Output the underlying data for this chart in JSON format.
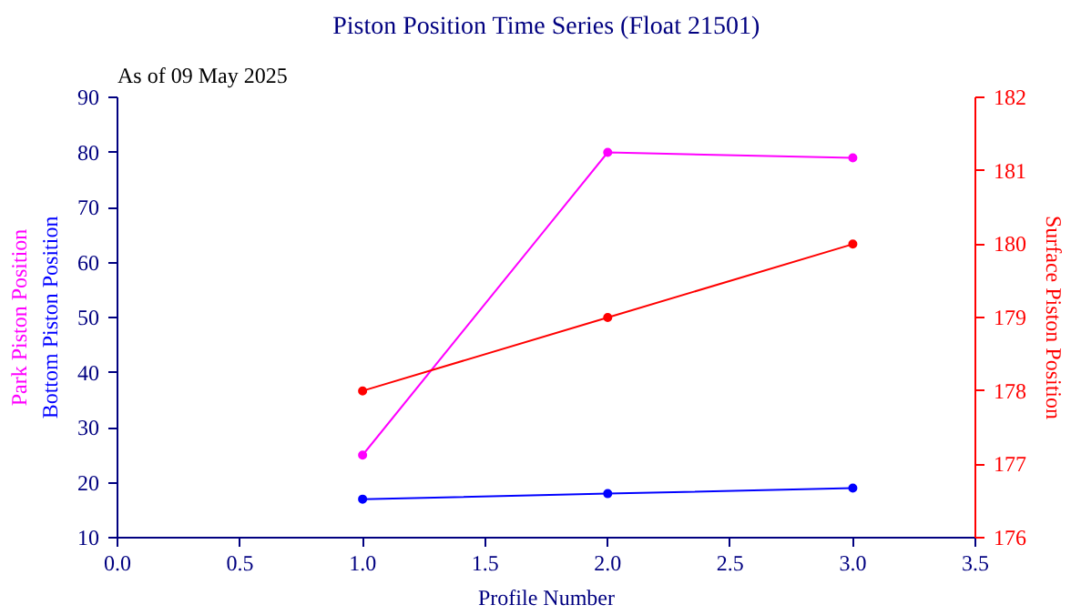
{
  "chart_data": {
    "type": "line",
    "title": "Piston Position Time Series (Float 21501)",
    "subtitle": "As of 09 May 2025",
    "xlabel": "Profile Number",
    "x": [
      1,
      2,
      3
    ],
    "series": [
      {
        "name": "Park Piston Position",
        "color": "#ff00ff",
        "values": [
          25,
          80,
          79
        ]
      },
      {
        "name": "Bottom Piston Position",
        "color": "#0000ff",
        "values": [
          17,
          18,
          19
        ]
      },
      {
        "name": "Surface Piston Position",
        "color": "#ff0000",
        "values": [
          178,
          179,
          180
        ],
        "axis": "y2"
      }
    ],
    "xlim": [
      0,
      3.5
    ],
    "xticks": [
      {
        "value": 0,
        "label": "0.0"
      },
      {
        "value": 0.5,
        "label": "0.5"
      },
      {
        "value": 1,
        "label": "1.0"
      },
      {
        "value": 1.5,
        "label": "1.5"
      },
      {
        "value": 2,
        "label": "2.0"
      },
      {
        "value": 2.5,
        "label": "2.5"
      },
      {
        "value": 3,
        "label": "3.0"
      },
      {
        "value": 3.5,
        "label": "3.5"
      }
    ],
    "ylim": [
      10,
      90
    ],
    "yticks": [
      10,
      20,
      30,
      40,
      50,
      60,
      70,
      80,
      90
    ],
    "y2lim": [
      176,
      182
    ],
    "y2ticks": [
      176,
      177,
      178,
      179,
      180,
      181,
      182
    ],
    "marker": "circle",
    "line_style": "solid",
    "grid": false
  }
}
